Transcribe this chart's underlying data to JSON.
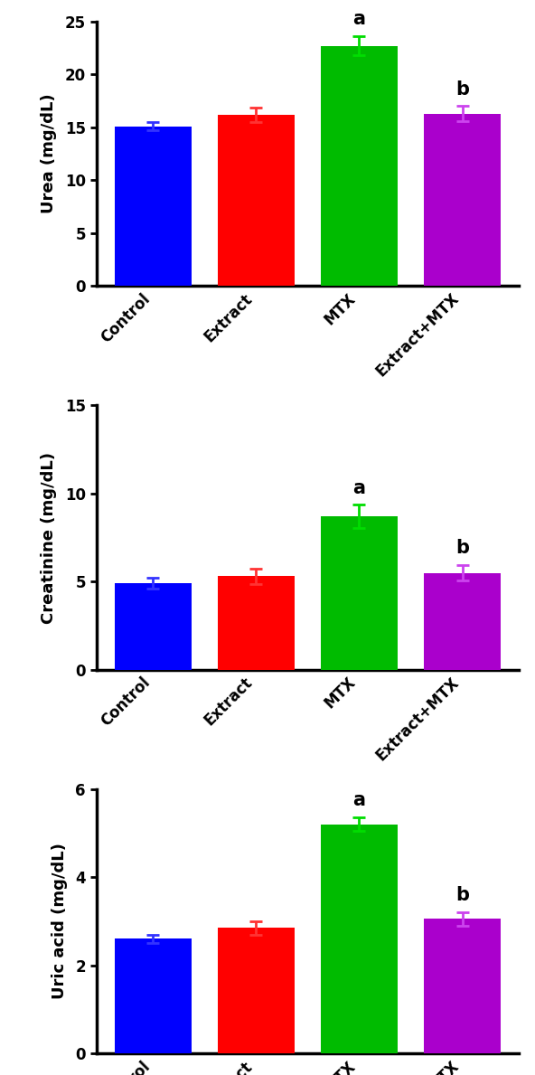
{
  "charts": [
    {
      "ylabel": "Urea (mg/dL)",
      "ylim": [
        0,
        25
      ],
      "yticks": [
        0,
        5,
        10,
        15,
        20,
        25
      ],
      "values": [
        15.1,
        16.2,
        22.7,
        16.3
      ],
      "errors": [
        0.4,
        0.7,
        0.9,
        0.7
      ],
      "annotations": [
        "",
        "",
        "a",
        "b"
      ]
    },
    {
      "ylabel": "Creatinine (mg/dL)",
      "ylim": [
        0,
        15
      ],
      "yticks": [
        0,
        5,
        10,
        15
      ],
      "values": [
        4.9,
        5.3,
        8.7,
        5.5
      ],
      "errors": [
        0.3,
        0.45,
        0.65,
        0.45
      ],
      "annotations": [
        "",
        "",
        "a",
        "b"
      ]
    },
    {
      "ylabel": "Uric acid (mg/dL)",
      "ylim": [
        0,
        6
      ],
      "yticks": [
        0,
        2,
        4,
        6
      ],
      "values": [
        2.6,
        2.85,
        5.2,
        3.05
      ],
      "errors": [
        0.1,
        0.15,
        0.15,
        0.15
      ],
      "annotations": [
        "",
        "",
        "a",
        "b"
      ]
    }
  ],
  "categories": [
    "Control",
    "Extract",
    "MTX",
    "Extract+MTX"
  ],
  "bar_colors": [
    "#0000ff",
    "#ff0000",
    "#00bb00",
    "#aa00cc"
  ],
  "error_colors": [
    "#3333ff",
    "#ff3333",
    "#00dd00",
    "#cc44ee"
  ],
  "bar_width": 0.75,
  "xlabel_fontsize": 12,
  "ylabel_fontsize": 13,
  "tick_fontsize": 12,
  "ann_fontsize": 15,
  "axis_linewidth": 2.5,
  "background_color": "#ffffff"
}
